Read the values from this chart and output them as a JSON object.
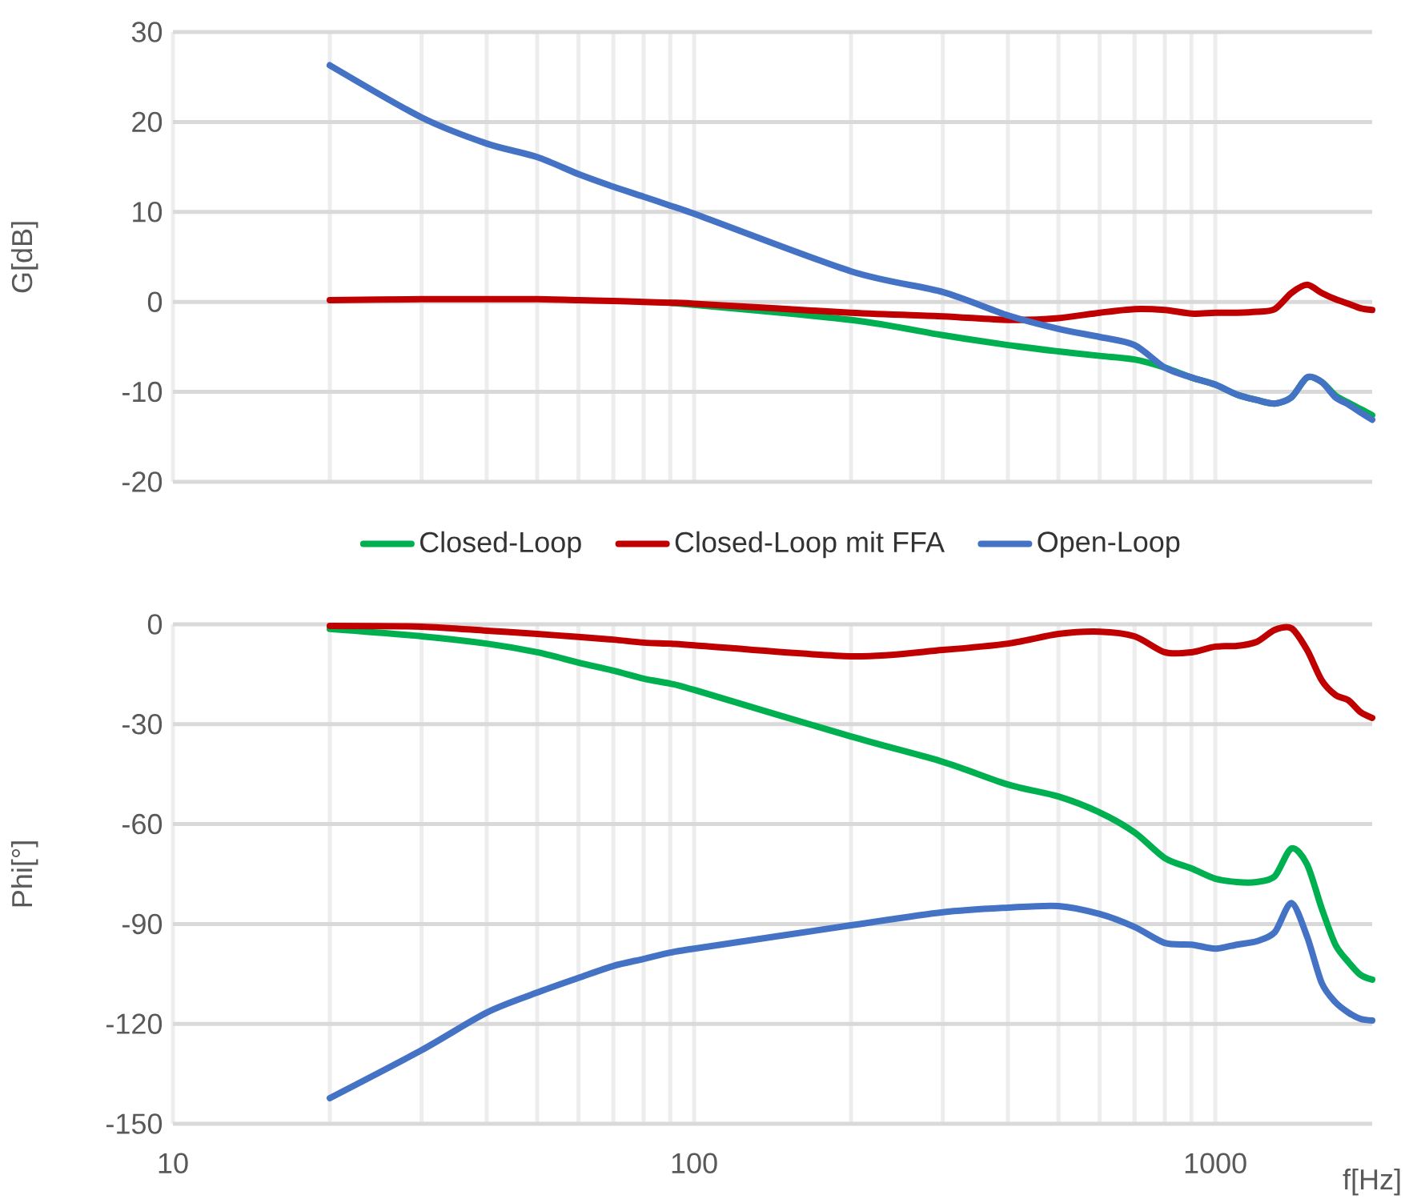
{
  "chart_data": [
    {
      "type": "line",
      "ylabel": "G[dB]",
      "log": "x",
      "grid": true,
      "legend": "bottom",
      "tick_labels": "y",
      "line_style": "solid",
      "x": [
        20,
        30,
        40,
        50,
        60,
        70,
        80,
        90,
        100,
        200,
        300,
        400,
        500,
        600,
        700,
        800,
        900,
        1000,
        1100,
        1200,
        1300,
        1400,
        1500,
        1600,
        1700,
        1800,
        1900,
        2000
      ],
      "xlim": [
        10,
        2000
      ],
      "xticks": [
        10,
        100,
        1000
      ],
      "ylim": [
        -20,
        30
      ],
      "yticks": [
        -20,
        -10,
        0,
        10,
        20,
        30
      ],
      "series": [
        {
          "name": "Closed-Loop",
          "color": "#00b050",
          "values": [
            null,
            null,
            null,
            null,
            null,
            null,
            null,
            -0.1,
            null,
            -2.0,
            -3.7,
            -4.8,
            -5.5,
            -6.0,
            -6.4,
            -7.3,
            -8.4,
            -9.2,
            -10.3,
            -10.9,
            -11.3,
            -10.6,
            -8.4,
            -8.9,
            -10.4,
            -11.2,
            -11.9,
            -12.6
          ]
        },
        {
          "name": "Closed-Loop mit FFA",
          "color": "#c00000",
          "values": [
            0.2,
            0.3,
            0.3,
            0.3,
            0.2,
            0.1,
            0.0,
            -0.1,
            -0.2,
            -1.2,
            -1.6,
            -2.0,
            -1.8,
            -1.2,
            -0.8,
            -0.9,
            -1.3,
            -1.2,
            -1.2,
            -1.1,
            -0.8,
            1.0,
            1.9,
            1.0,
            0.3,
            -0.2,
            -0.7,
            -0.9
          ]
        },
        {
          "name": "Open-Loop",
          "color": "#4472c4",
          "values": [
            26.3,
            20.5,
            17.6,
            16.1,
            14.2,
            12.8,
            11.7,
            10.7,
            9.8,
            3.4,
            1.1,
            -1.5,
            -3.0,
            -3.9,
            -4.8,
            -7.3,
            -8.4,
            -9.2,
            -10.3,
            -10.9,
            -11.3,
            -10.6,
            -8.4,
            -8.9,
            -10.6,
            -11.4,
            -12.3,
            -13.1
          ]
        }
      ]
    },
    {
      "type": "line",
      "xlabel": "f[Hz]",
      "ylabel": "Phi[°]",
      "log": "x",
      "grid": true,
      "line_style": "solid",
      "x": [
        20,
        30,
        40,
        50,
        60,
        70,
        80,
        90,
        100,
        200,
        300,
        400,
        500,
        600,
        700,
        800,
        900,
        1000,
        1100,
        1200,
        1300,
        1400,
        1500,
        1600,
        1700,
        1800,
        1900,
        2000
      ],
      "xlim": [
        10,
        2000
      ],
      "xticks": [
        10,
        100,
        1000
      ],
      "ylim": [
        -150,
        0
      ],
      "yticks": [
        -150,
        -120,
        -90,
        -60,
        -30,
        0
      ],
      "series": [
        {
          "color": "#00b050",
          "values": [
            -1.4,
            -3.6,
            -5.8,
            -8.4,
            -11.5,
            -13.9,
            -16.3,
            -17.8,
            -19.7,
            -33.7,
            -41.3,
            -48.1,
            -51.7,
            -56.5,
            -62.5,
            -70.2,
            -73.3,
            -76.4,
            -77.4,
            -77.4,
            -75.7,
            -67.3,
            -72.1,
            -85.3,
            -96.2,
            -101.4,
            -105.3,
            -106.7
          ]
        },
        {
          "color": "#c00000",
          "values": [
            -0.5,
            -0.7,
            -1.9,
            -2.9,
            -3.8,
            -4.6,
            -5.5,
            -5.8,
            -6.3,
            -9.6,
            -7.7,
            -5.8,
            -2.9,
            -2.2,
            -3.6,
            -8.4,
            -8.4,
            -6.7,
            -6.5,
            -5.3,
            -1.7,
            -1.2,
            -7.7,
            -16.8,
            -21.2,
            -22.8,
            -26.4,
            -28.1
          ]
        },
        {
          "color": "#4472c4",
          "values": [
            -142.3,
            -127.9,
            -116.6,
            -110.6,
            -106.2,
            -102.6,
            -100.5,
            -98.6,
            -97.4,
            -90.4,
            -86.5,
            -85.1,
            -84.6,
            -87.0,
            -90.9,
            -95.7,
            -96.2,
            -97.4,
            -96.2,
            -95.2,
            -92.5,
            -83.7,
            -93.8,
            -107.7,
            -113.5,
            -116.6,
            -118.5,
            -119.0
          ]
        }
      ]
    }
  ]
}
